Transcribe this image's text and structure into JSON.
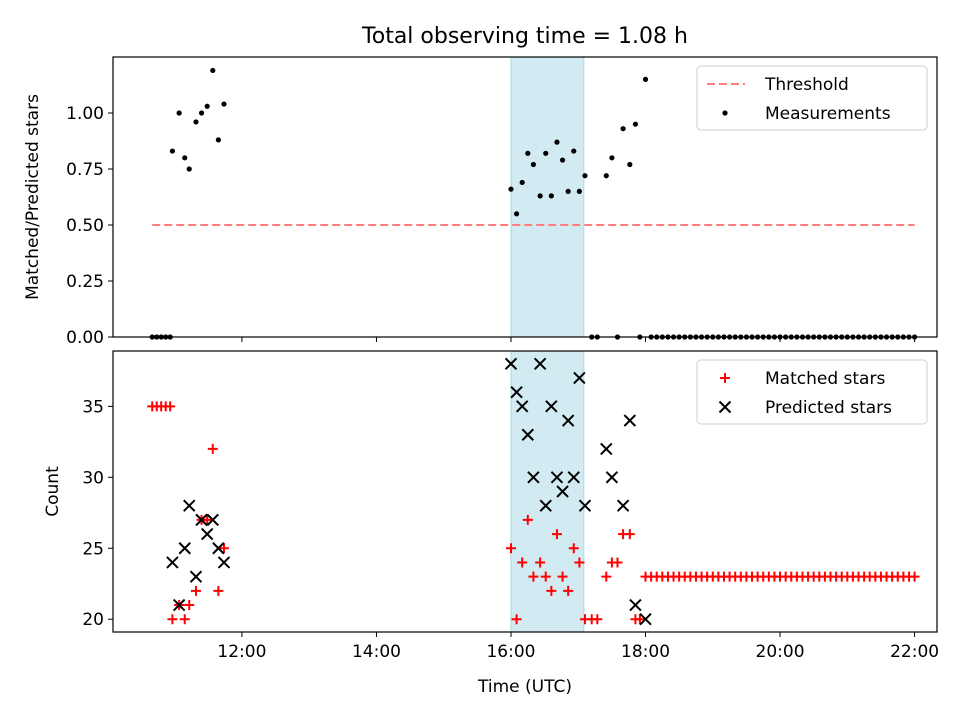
{
  "title": "Total observing time = 1.08 h",
  "chart_data": [
    {
      "type": "scatter",
      "panel": "top",
      "title": "Total observing time = 1.08 h",
      "xlabel": "",
      "ylabel": "Matched/Predicted stars",
      "xlim": [
        "10:05",
        "22:20"
      ],
      "ylim": [
        0.0,
        1.25
      ],
      "yticks": [
        "0.00",
        "0.25",
        "0.50",
        "0.75",
        "1.00"
      ],
      "shaded_span": {
        "x": [
          "16:00",
          "17:05"
        ],
        "color": "#add8e6"
      },
      "legend_position": "top-right",
      "series": [
        {
          "name": "Threshold",
          "kind": "dashed-line",
          "color": "#ff7f7f",
          "x": [
            "10:40",
            "22:00"
          ],
          "y": [
            0.5,
            0.5
          ]
        },
        {
          "name": "Measurements",
          "kind": "points",
          "color": "#000000",
          "points": [
            [
              "10:40",
              0.0
            ],
            [
              "10:44",
              0.0
            ],
            [
              "10:48",
              0.0
            ],
            [
              "10:52",
              0.0
            ],
            [
              "10:56",
              0.0
            ],
            [
              "10:58",
              0.83
            ],
            [
              "11:04",
              1.0
            ],
            [
              "11:09",
              0.8
            ],
            [
              "11:13",
              0.75
            ],
            [
              "11:19",
              0.96
            ],
            [
              "11:24",
              1.0
            ],
            [
              "11:29",
              1.03
            ],
            [
              "11:34",
              1.19
            ],
            [
              "11:39",
              0.88
            ],
            [
              "11:44",
              1.04
            ],
            [
              "16:00",
              0.66
            ],
            [
              "16:05",
              0.55
            ],
            [
              "16:10",
              0.69
            ],
            [
              "16:15",
              0.82
            ],
            [
              "16:20",
              0.77
            ],
            [
              "16:26",
              0.63
            ],
            [
              "16:31",
              0.82
            ],
            [
              "16:36",
              0.63
            ],
            [
              "16:41",
              0.87
            ],
            [
              "16:46",
              0.79
            ],
            [
              "16:51",
              0.65
            ],
            [
              "16:56",
              0.83
            ],
            [
              "17:01",
              0.65
            ],
            [
              "17:06",
              0.72
            ],
            [
              "17:12",
              0.0
            ],
            [
              "17:17",
              0.0
            ],
            [
              "17:25",
              0.72
            ],
            [
              "17:30",
              0.8
            ],
            [
              "17:35",
              0.0
            ],
            [
              "17:40",
              0.93
            ],
            [
              "17:46",
              0.77
            ],
            [
              "17:51",
              0.95
            ],
            [
              "17:55",
              0.0
            ],
            [
              "18:00",
              1.15
            ],
            [
              "18:05",
              0.0
            ],
            [
              "18:10",
              0.0
            ],
            [
              "18:15",
              0.0
            ],
            [
              "18:20",
              0.0
            ],
            [
              "18:25",
              0.0
            ],
            [
              "18:30",
              0.0
            ],
            [
              "18:35",
              0.0
            ],
            [
              "18:40",
              0.0
            ],
            [
              "18:45",
              0.0
            ],
            [
              "18:50",
              0.0
            ],
            [
              "18:55",
              0.0
            ],
            [
              "19:00",
              0.0
            ],
            [
              "19:05",
              0.0
            ],
            [
              "19:10",
              0.0
            ],
            [
              "19:15",
              0.0
            ],
            [
              "19:20",
              0.0
            ],
            [
              "19:25",
              0.0
            ],
            [
              "19:30",
              0.0
            ],
            [
              "19:35",
              0.0
            ],
            [
              "19:40",
              0.0
            ],
            [
              "19:45",
              0.0
            ],
            [
              "19:50",
              0.0
            ],
            [
              "19:55",
              0.0
            ],
            [
              "20:00",
              0.0
            ],
            [
              "20:05",
              0.0
            ],
            [
              "20:10",
              0.0
            ],
            [
              "20:15",
              0.0
            ],
            [
              "20:20",
              0.0
            ],
            [
              "20:25",
              0.0
            ],
            [
              "20:30",
              0.0
            ],
            [
              "20:35",
              0.0
            ],
            [
              "20:40",
              0.0
            ],
            [
              "20:45",
              0.0
            ],
            [
              "20:50",
              0.0
            ],
            [
              "20:55",
              0.0
            ],
            [
              "21:00",
              0.0
            ],
            [
              "21:05",
              0.0
            ],
            [
              "21:10",
              0.0
            ],
            [
              "21:15",
              0.0
            ],
            [
              "21:20",
              0.0
            ],
            [
              "21:25",
              0.0
            ],
            [
              "21:30",
              0.0
            ],
            [
              "21:35",
              0.0
            ],
            [
              "21:40",
              0.0
            ],
            [
              "21:45",
              0.0
            ],
            [
              "21:50",
              0.0
            ],
            [
              "21:55",
              0.0
            ],
            [
              "22:00",
              0.0
            ]
          ]
        }
      ]
    },
    {
      "type": "scatter",
      "panel": "bottom",
      "xlabel": "Time (UTC)",
      "ylabel": "Count",
      "xlim": [
        "10:05",
        "22:20"
      ],
      "ylim": [
        19.1,
        38.9
      ],
      "xticks": [
        "12:00",
        "14:00",
        "16:00",
        "18:00",
        "20:00",
        "22:00"
      ],
      "yticks": [
        "20",
        "25",
        "30",
        "35"
      ],
      "shaded_span": {
        "x": [
          "16:00",
          "17:05"
        ],
        "color": "#add8e6"
      },
      "legend_position": "top-right",
      "series": [
        {
          "name": "Matched stars",
          "kind": "plus",
          "color": "#ff0000",
          "points": [
            [
              "10:40",
              35
            ],
            [
              "10:44",
              35
            ],
            [
              "10:48",
              35
            ],
            [
              "10:52",
              35
            ],
            [
              "10:56",
              35
            ],
            [
              "10:58",
              20
            ],
            [
              "11:04",
              21
            ],
            [
              "11:09",
              20
            ],
            [
              "11:13",
              21
            ],
            [
              "11:19",
              22
            ],
            [
              "11:24",
              27
            ],
            [
              "11:29",
              27
            ],
            [
              "11:34",
              32
            ],
            [
              "11:39",
              22
            ],
            [
              "11:44",
              25
            ],
            [
              "16:00",
              25
            ],
            [
              "16:05",
              20
            ],
            [
              "16:10",
              24
            ],
            [
              "16:15",
              27
            ],
            [
              "16:20",
              23
            ],
            [
              "16:26",
              24
            ],
            [
              "16:31",
              23
            ],
            [
              "16:36",
              22
            ],
            [
              "16:41",
              26
            ],
            [
              "16:46",
              23
            ],
            [
              "16:51",
              22
            ],
            [
              "16:56",
              25
            ],
            [
              "17:01",
              24
            ],
            [
              "17:06",
              20
            ],
            [
              "17:12",
              20
            ],
            [
              "17:17",
              20
            ],
            [
              "17:25",
              23
            ],
            [
              "17:30",
              24
            ],
            [
              "17:35",
              24
            ],
            [
              "17:40",
              26
            ],
            [
              "17:46",
              26
            ],
            [
              "17:51",
              20
            ],
            [
              "17:55",
              20
            ],
            [
              "18:00",
              23
            ],
            [
              "18:05",
              23
            ],
            [
              "18:10",
              23
            ],
            [
              "18:15",
              23
            ],
            [
              "18:20",
              23
            ],
            [
              "18:25",
              23
            ],
            [
              "18:30",
              23
            ],
            [
              "18:35",
              23
            ],
            [
              "18:40",
              23
            ],
            [
              "18:45",
              23
            ],
            [
              "18:50",
              23
            ],
            [
              "18:55",
              23
            ],
            [
              "19:00",
              23
            ],
            [
              "19:05",
              23
            ],
            [
              "19:10",
              23
            ],
            [
              "19:15",
              23
            ],
            [
              "19:20",
              23
            ],
            [
              "19:25",
              23
            ],
            [
              "19:30",
              23
            ],
            [
              "19:35",
              23
            ],
            [
              "19:40",
              23
            ],
            [
              "19:45",
              23
            ],
            [
              "19:50",
              23
            ],
            [
              "19:55",
              23
            ],
            [
              "20:00",
              23
            ],
            [
              "20:05",
              23
            ],
            [
              "20:10",
              23
            ],
            [
              "20:15",
              23
            ],
            [
              "20:20",
              23
            ],
            [
              "20:25",
              23
            ],
            [
              "20:30",
              23
            ],
            [
              "20:35",
              23
            ],
            [
              "20:40",
              23
            ],
            [
              "20:45",
              23
            ],
            [
              "20:50",
              23
            ],
            [
              "20:55",
              23
            ],
            [
              "21:00",
              23
            ],
            [
              "21:05",
              23
            ],
            [
              "21:10",
              23
            ],
            [
              "21:15",
              23
            ],
            [
              "21:20",
              23
            ],
            [
              "21:25",
              23
            ],
            [
              "21:30",
              23
            ],
            [
              "21:35",
              23
            ],
            [
              "21:40",
              23
            ],
            [
              "21:45",
              23
            ],
            [
              "21:50",
              23
            ],
            [
              "21:55",
              23
            ],
            [
              "22:00",
              23
            ]
          ]
        },
        {
          "name": "Predicted stars",
          "kind": "x",
          "color": "#000000",
          "points": [
            [
              "10:58",
              24
            ],
            [
              "11:04",
              21
            ],
            [
              "11:09",
              25
            ],
            [
              "11:13",
              28
            ],
            [
              "11:19",
              23
            ],
            [
              "11:24",
              27
            ],
            [
              "11:29",
              26
            ],
            [
              "11:34",
              27
            ],
            [
              "11:39",
              25
            ],
            [
              "11:44",
              24
            ],
            [
              "16:00",
              38
            ],
            [
              "16:05",
              36
            ],
            [
              "16:10",
              35
            ],
            [
              "16:15",
              33
            ],
            [
              "16:20",
              30
            ],
            [
              "16:26",
              38
            ],
            [
              "16:31",
              28
            ],
            [
              "16:36",
              35
            ],
            [
              "16:41",
              30
            ],
            [
              "16:46",
              29
            ],
            [
              "16:51",
              34
            ],
            [
              "16:56",
              30
            ],
            [
              "17:01",
              37
            ],
            [
              "17:06",
              28
            ],
            [
              "17:25",
              32
            ],
            [
              "17:30",
              30
            ],
            [
              "17:40",
              28
            ],
            [
              "17:46",
              34
            ],
            [
              "17:51",
              21
            ],
            [
              "18:00",
              20
            ]
          ]
        }
      ]
    }
  ]
}
